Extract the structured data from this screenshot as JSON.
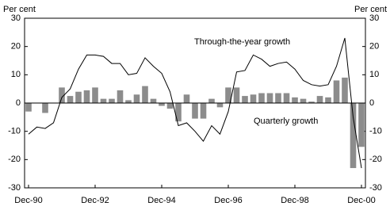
{
  "chart_data": {
    "type": "bar-line",
    "y_label_left": "Per cent",
    "y_label_right": "Per cent",
    "annotations": [
      "Through-the-year growth",
      "Quarterly growth"
    ],
    "categories": [
      "Dec-90",
      null,
      null,
      null,
      null,
      null,
      null,
      null,
      "Dec-92",
      null,
      null,
      null,
      null,
      null,
      null,
      null,
      "Dec-94",
      null,
      null,
      null,
      null,
      null,
      null,
      null,
      "Dec-96",
      null,
      null,
      null,
      null,
      null,
      null,
      null,
      "Dec-98",
      null,
      null,
      null,
      null,
      null,
      null,
      null,
      "Dec-00"
    ],
    "series": [
      {
        "name": "Quarterly growth",
        "type": "bar",
        "color": "#8c8c8c",
        "values": [
          -3,
          0,
          -3.5,
          0,
          5.5,
          2.5,
          4,
          4.5,
          5.5,
          1.5,
          1.5,
          4.5,
          1,
          3,
          6,
          1.5,
          -1,
          -2,
          -6.5,
          3,
          -5.5,
          -5.5,
          1.5,
          -1.5,
          5.5,
          5.5,
          2.5,
          3,
          3.5,
          3.5,
          3.5,
          3.5,
          2,
          1.5,
          0.5,
          2.5,
          2,
          8,
          9,
          -23,
          -15.5
        ]
      },
      {
        "name": "Through-the-year growth",
        "type": "line",
        "color": "#000000",
        "values": [
          -11,
          -8.5,
          -9,
          -7,
          2,
          5,
          12,
          17,
          17,
          16.5,
          14,
          14,
          10,
          10.5,
          16,
          13,
          10.5,
          4,
          -8,
          -7,
          -10,
          -13.5,
          -8,
          -11,
          -3,
          11,
          11.5,
          17,
          15.5,
          13,
          14,
          14.5,
          12,
          8,
          6.5,
          6,
          6.5,
          13,
          23,
          -5,
          -23
        ]
      }
    ],
    "ylim": [
      -30,
      30
    ],
    "yticks": [
      -30,
      -20,
      -10,
      0,
      10,
      20,
      30
    ],
    "y2lim": [
      -30,
      30
    ],
    "y2ticks": [
      -30,
      -20,
      -10,
      0,
      10,
      20,
      30
    ]
  }
}
